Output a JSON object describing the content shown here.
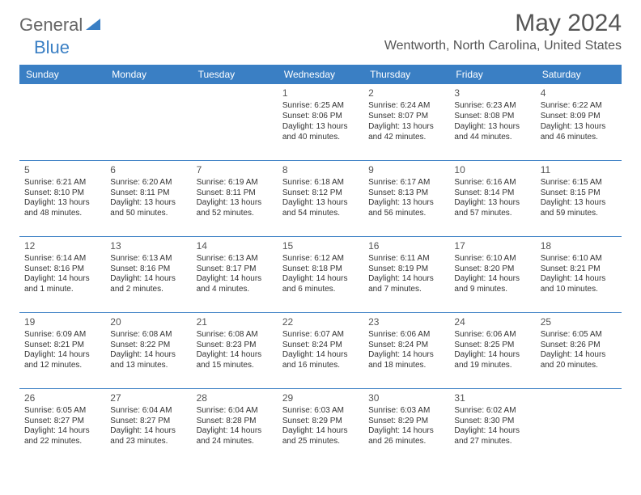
{
  "logo": {
    "general": "General",
    "blue": "Blue"
  },
  "title": "May 2024",
  "location": "Wentworth, North Carolina, United States",
  "colors": {
    "header_bg": "#3a7fc4",
    "header_text": "#ffffff",
    "border": "#3a7fc4",
    "text": "#333333",
    "title_color": "#555555",
    "background": "#ffffff"
  },
  "day_headers": [
    "Sunday",
    "Monday",
    "Tuesday",
    "Wednesday",
    "Thursday",
    "Friday",
    "Saturday"
  ],
  "weeks": [
    [
      null,
      null,
      null,
      {
        "n": "1",
        "sr": "Sunrise: 6:25 AM",
        "ss": "Sunset: 8:06 PM",
        "dl": "Daylight: 13 hours and 40 minutes."
      },
      {
        "n": "2",
        "sr": "Sunrise: 6:24 AM",
        "ss": "Sunset: 8:07 PM",
        "dl": "Daylight: 13 hours and 42 minutes."
      },
      {
        "n": "3",
        "sr": "Sunrise: 6:23 AM",
        "ss": "Sunset: 8:08 PM",
        "dl": "Daylight: 13 hours and 44 minutes."
      },
      {
        "n": "4",
        "sr": "Sunrise: 6:22 AM",
        "ss": "Sunset: 8:09 PM",
        "dl": "Daylight: 13 hours and 46 minutes."
      }
    ],
    [
      {
        "n": "5",
        "sr": "Sunrise: 6:21 AM",
        "ss": "Sunset: 8:10 PM",
        "dl": "Daylight: 13 hours and 48 minutes."
      },
      {
        "n": "6",
        "sr": "Sunrise: 6:20 AM",
        "ss": "Sunset: 8:11 PM",
        "dl": "Daylight: 13 hours and 50 minutes."
      },
      {
        "n": "7",
        "sr": "Sunrise: 6:19 AM",
        "ss": "Sunset: 8:11 PM",
        "dl": "Daylight: 13 hours and 52 minutes."
      },
      {
        "n": "8",
        "sr": "Sunrise: 6:18 AM",
        "ss": "Sunset: 8:12 PM",
        "dl": "Daylight: 13 hours and 54 minutes."
      },
      {
        "n": "9",
        "sr": "Sunrise: 6:17 AM",
        "ss": "Sunset: 8:13 PM",
        "dl": "Daylight: 13 hours and 56 minutes."
      },
      {
        "n": "10",
        "sr": "Sunrise: 6:16 AM",
        "ss": "Sunset: 8:14 PM",
        "dl": "Daylight: 13 hours and 57 minutes."
      },
      {
        "n": "11",
        "sr": "Sunrise: 6:15 AM",
        "ss": "Sunset: 8:15 PM",
        "dl": "Daylight: 13 hours and 59 minutes."
      }
    ],
    [
      {
        "n": "12",
        "sr": "Sunrise: 6:14 AM",
        "ss": "Sunset: 8:16 PM",
        "dl": "Daylight: 14 hours and 1 minute."
      },
      {
        "n": "13",
        "sr": "Sunrise: 6:13 AM",
        "ss": "Sunset: 8:16 PM",
        "dl": "Daylight: 14 hours and 2 minutes."
      },
      {
        "n": "14",
        "sr": "Sunrise: 6:13 AM",
        "ss": "Sunset: 8:17 PM",
        "dl": "Daylight: 14 hours and 4 minutes."
      },
      {
        "n": "15",
        "sr": "Sunrise: 6:12 AM",
        "ss": "Sunset: 8:18 PM",
        "dl": "Daylight: 14 hours and 6 minutes."
      },
      {
        "n": "16",
        "sr": "Sunrise: 6:11 AM",
        "ss": "Sunset: 8:19 PM",
        "dl": "Daylight: 14 hours and 7 minutes."
      },
      {
        "n": "17",
        "sr": "Sunrise: 6:10 AM",
        "ss": "Sunset: 8:20 PM",
        "dl": "Daylight: 14 hours and 9 minutes."
      },
      {
        "n": "18",
        "sr": "Sunrise: 6:10 AM",
        "ss": "Sunset: 8:21 PM",
        "dl": "Daylight: 14 hours and 10 minutes."
      }
    ],
    [
      {
        "n": "19",
        "sr": "Sunrise: 6:09 AM",
        "ss": "Sunset: 8:21 PM",
        "dl": "Daylight: 14 hours and 12 minutes."
      },
      {
        "n": "20",
        "sr": "Sunrise: 6:08 AM",
        "ss": "Sunset: 8:22 PM",
        "dl": "Daylight: 14 hours and 13 minutes."
      },
      {
        "n": "21",
        "sr": "Sunrise: 6:08 AM",
        "ss": "Sunset: 8:23 PM",
        "dl": "Daylight: 14 hours and 15 minutes."
      },
      {
        "n": "22",
        "sr": "Sunrise: 6:07 AM",
        "ss": "Sunset: 8:24 PM",
        "dl": "Daylight: 14 hours and 16 minutes."
      },
      {
        "n": "23",
        "sr": "Sunrise: 6:06 AM",
        "ss": "Sunset: 8:24 PM",
        "dl": "Daylight: 14 hours and 18 minutes."
      },
      {
        "n": "24",
        "sr": "Sunrise: 6:06 AM",
        "ss": "Sunset: 8:25 PM",
        "dl": "Daylight: 14 hours and 19 minutes."
      },
      {
        "n": "25",
        "sr": "Sunrise: 6:05 AM",
        "ss": "Sunset: 8:26 PM",
        "dl": "Daylight: 14 hours and 20 minutes."
      }
    ],
    [
      {
        "n": "26",
        "sr": "Sunrise: 6:05 AM",
        "ss": "Sunset: 8:27 PM",
        "dl": "Daylight: 14 hours and 22 minutes."
      },
      {
        "n": "27",
        "sr": "Sunrise: 6:04 AM",
        "ss": "Sunset: 8:27 PM",
        "dl": "Daylight: 14 hours and 23 minutes."
      },
      {
        "n": "28",
        "sr": "Sunrise: 6:04 AM",
        "ss": "Sunset: 8:28 PM",
        "dl": "Daylight: 14 hours and 24 minutes."
      },
      {
        "n": "29",
        "sr": "Sunrise: 6:03 AM",
        "ss": "Sunset: 8:29 PM",
        "dl": "Daylight: 14 hours and 25 minutes."
      },
      {
        "n": "30",
        "sr": "Sunrise: 6:03 AM",
        "ss": "Sunset: 8:29 PM",
        "dl": "Daylight: 14 hours and 26 minutes."
      },
      {
        "n": "31",
        "sr": "Sunrise: 6:02 AM",
        "ss": "Sunset: 8:30 PM",
        "dl": "Daylight: 14 hours and 27 minutes."
      },
      null
    ]
  ]
}
